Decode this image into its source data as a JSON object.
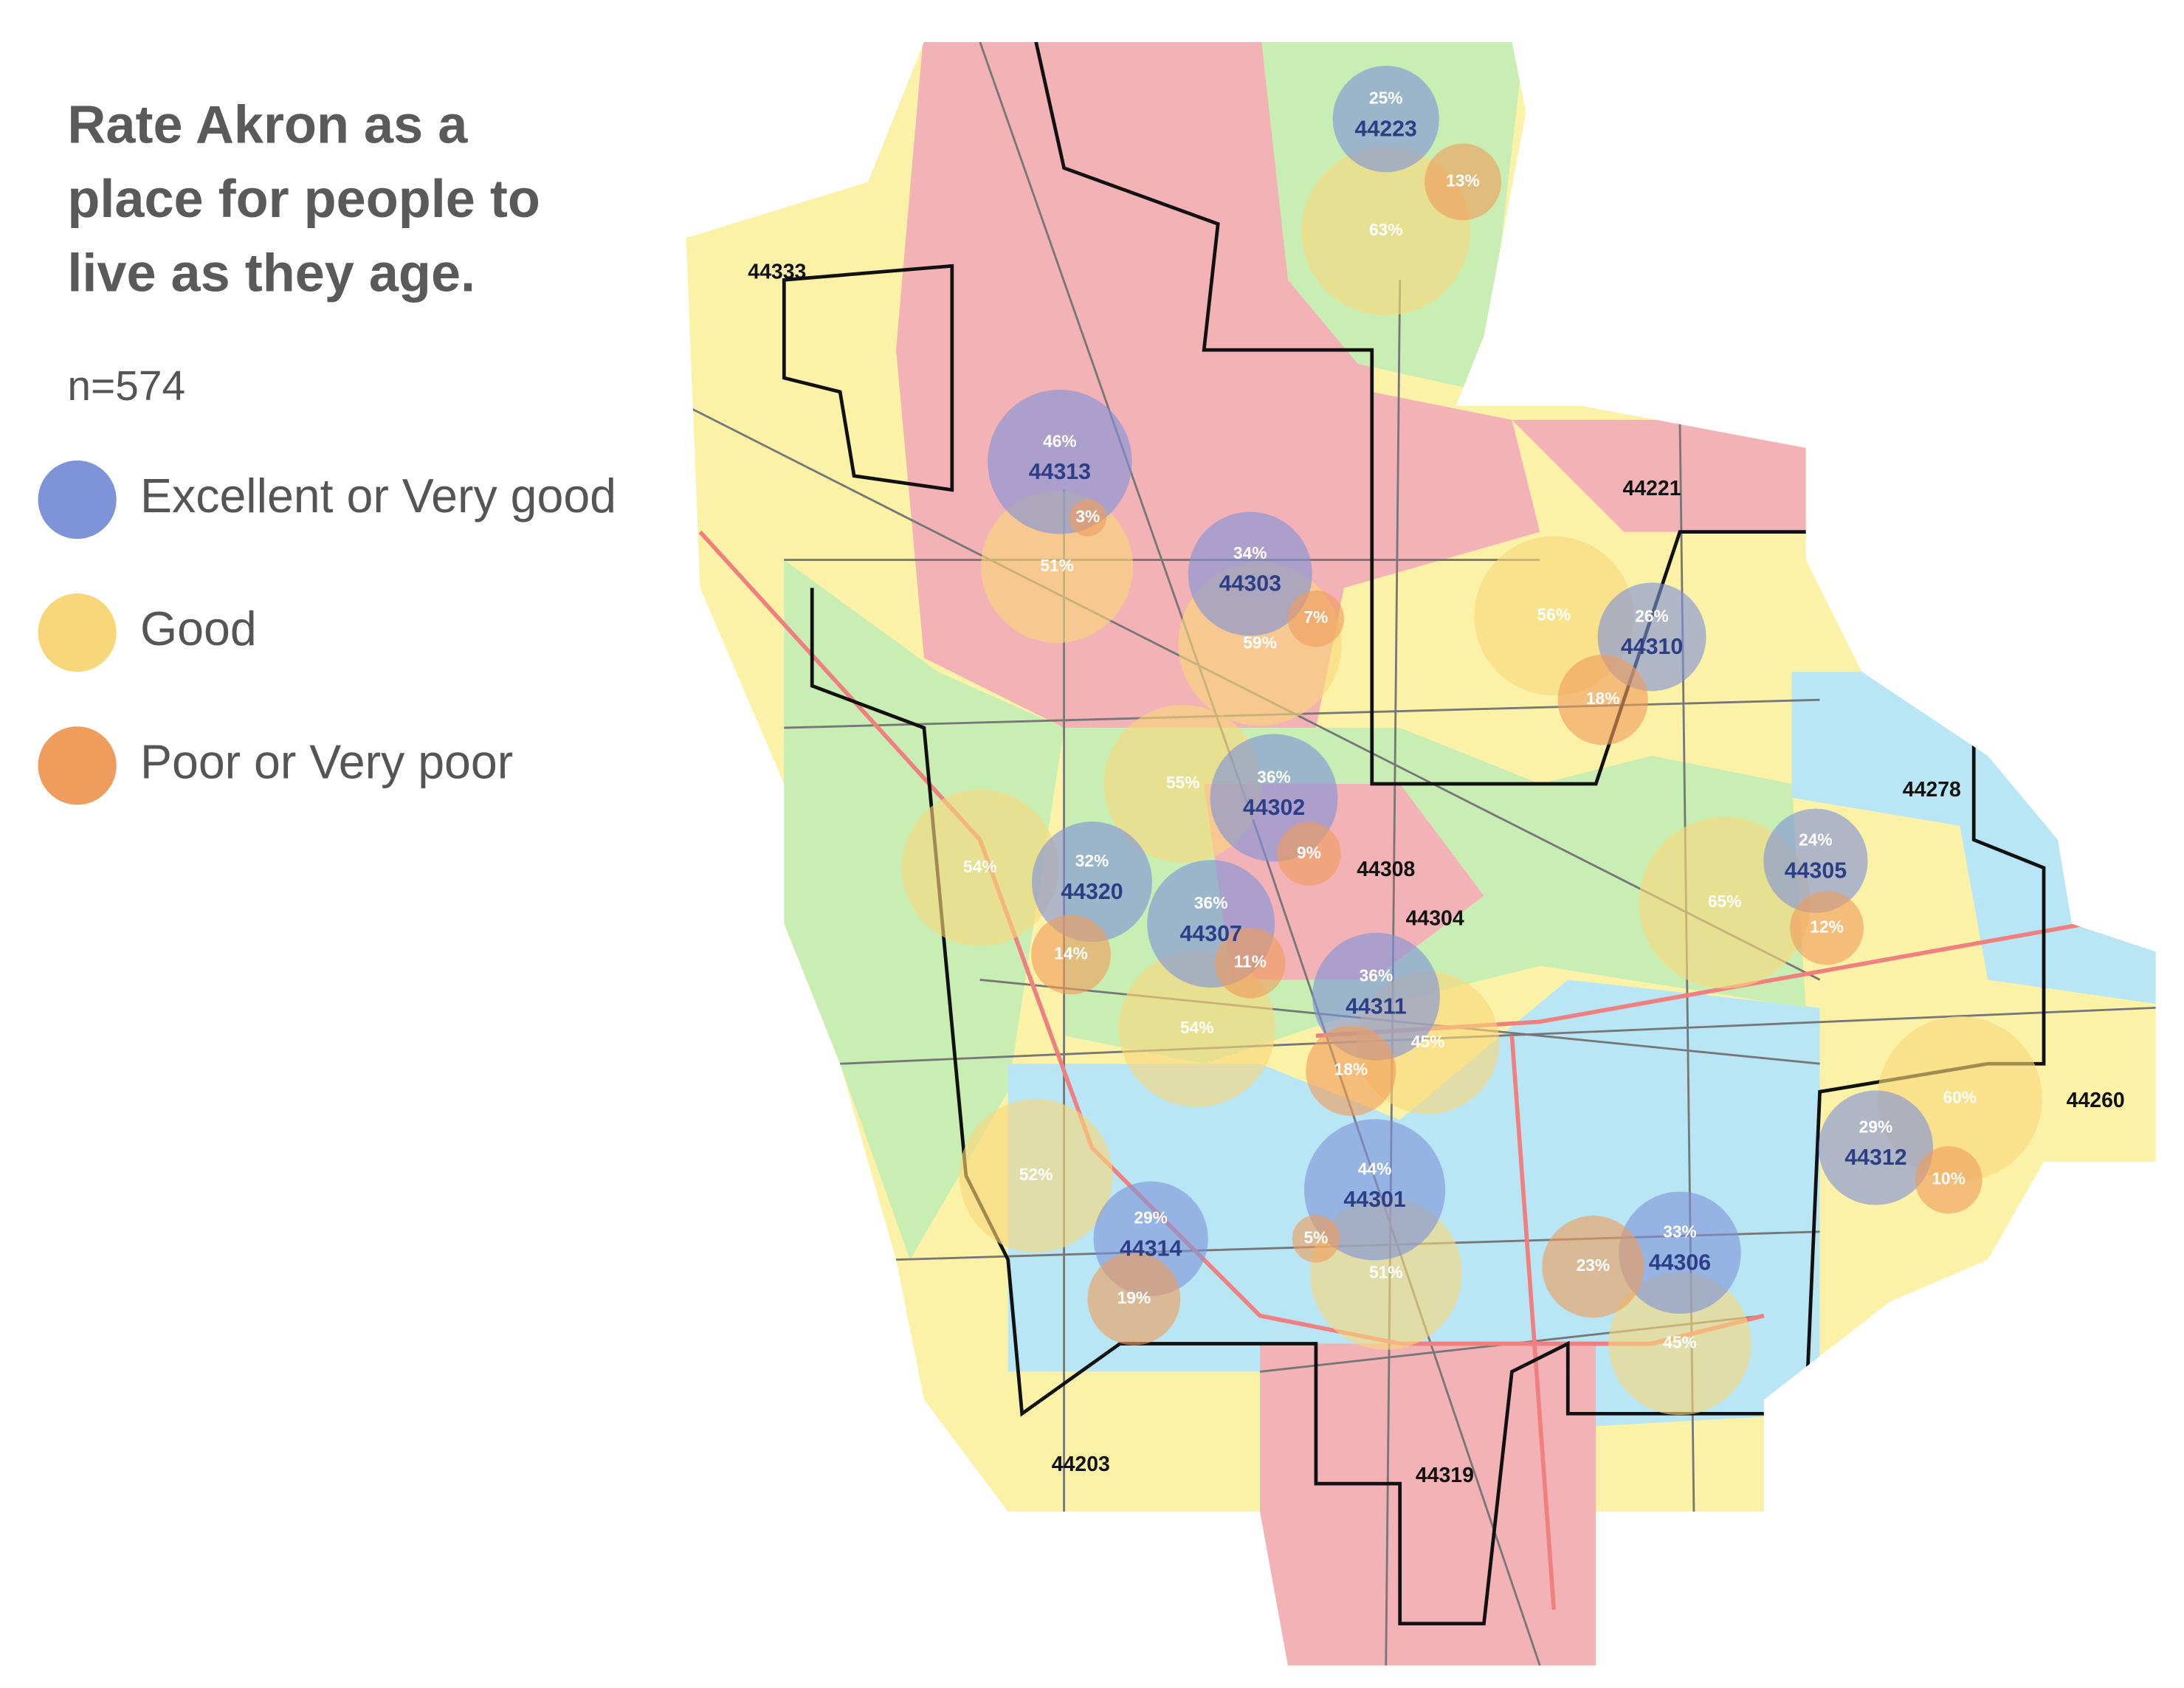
{
  "title_lines": [
    "Rate Akron as a",
    "place for people to",
    "live as they age."
  ],
  "sample": "n=574",
  "legend": [
    {
      "name": "Excellent or Very good",
      "color": "#7f93d8"
    },
    {
      "name": "Good",
      "color": "#f8d67a"
    },
    {
      "name": "Poor or Very poor",
      "color": "#ef9c5c"
    }
  ],
  "zips": [
    {
      "label": "44223",
      "values": [
        25,
        63,
        13
      ],
      "value_labels": [
        "25%",
        "63%",
        "13%"
      ]
    },
    {
      "label": "44313",
      "values": [
        46,
        51,
        3
      ],
      "value_labels": [
        "46%",
        "51%",
        "3%"
      ]
    },
    {
      "label": "44303",
      "values": [
        34,
        59,
        7
      ],
      "value_labels": [
        "34%",
        "59%",
        "7%"
      ]
    },
    {
      "label": "44310",
      "values": [
        26,
        56,
        18
      ],
      "value_labels": [
        "26%",
        "56%",
        "18%"
      ]
    },
    {
      "label": "44302",
      "values": [
        36,
        55,
        9
      ],
      "value_labels": [
        "36%",
        "55%",
        "9%"
      ]
    },
    {
      "label": "44320",
      "values": [
        32,
        54,
        14
      ],
      "value_labels": [
        "32%",
        "54%",
        "14%"
      ]
    },
    {
      "label": "44307",
      "values": [
        36,
        54,
        11
      ],
      "value_labels": [
        "36%",
        "54%",
        "11%"
      ]
    },
    {
      "label": "44305",
      "values": [
        24,
        65,
        12
      ],
      "value_labels": [
        "24%",
        "65%",
        "12%"
      ]
    },
    {
      "label": "44311",
      "values": [
        36,
        45,
        18
      ],
      "value_labels": [
        "36%",
        "45%",
        "18%"
      ]
    },
    {
      "label": "44301",
      "values": [
        44,
        51,
        5
      ],
      "value_labels": [
        "44%",
        "51%",
        "5%"
      ]
    },
    {
      "label": "44306",
      "values": [
        33,
        45,
        23
      ],
      "value_labels": [
        "33%",
        "45%",
        "23%"
      ]
    },
    {
      "label": "44312",
      "values": [
        29,
        60,
        10
      ],
      "value_labels": [
        "29%",
        "60%",
        "10%"
      ]
    },
    {
      "label": "44314",
      "values": [
        29,
        52,
        19
      ],
      "value_labels": [
        "29%",
        "52%",
        "19%"
      ]
    }
  ],
  "map_labels": [
    "44333",
    "44221",
    "44278",
    "44308",
    "44304",
    "44260",
    "44203",
    "44319"
  ]
}
